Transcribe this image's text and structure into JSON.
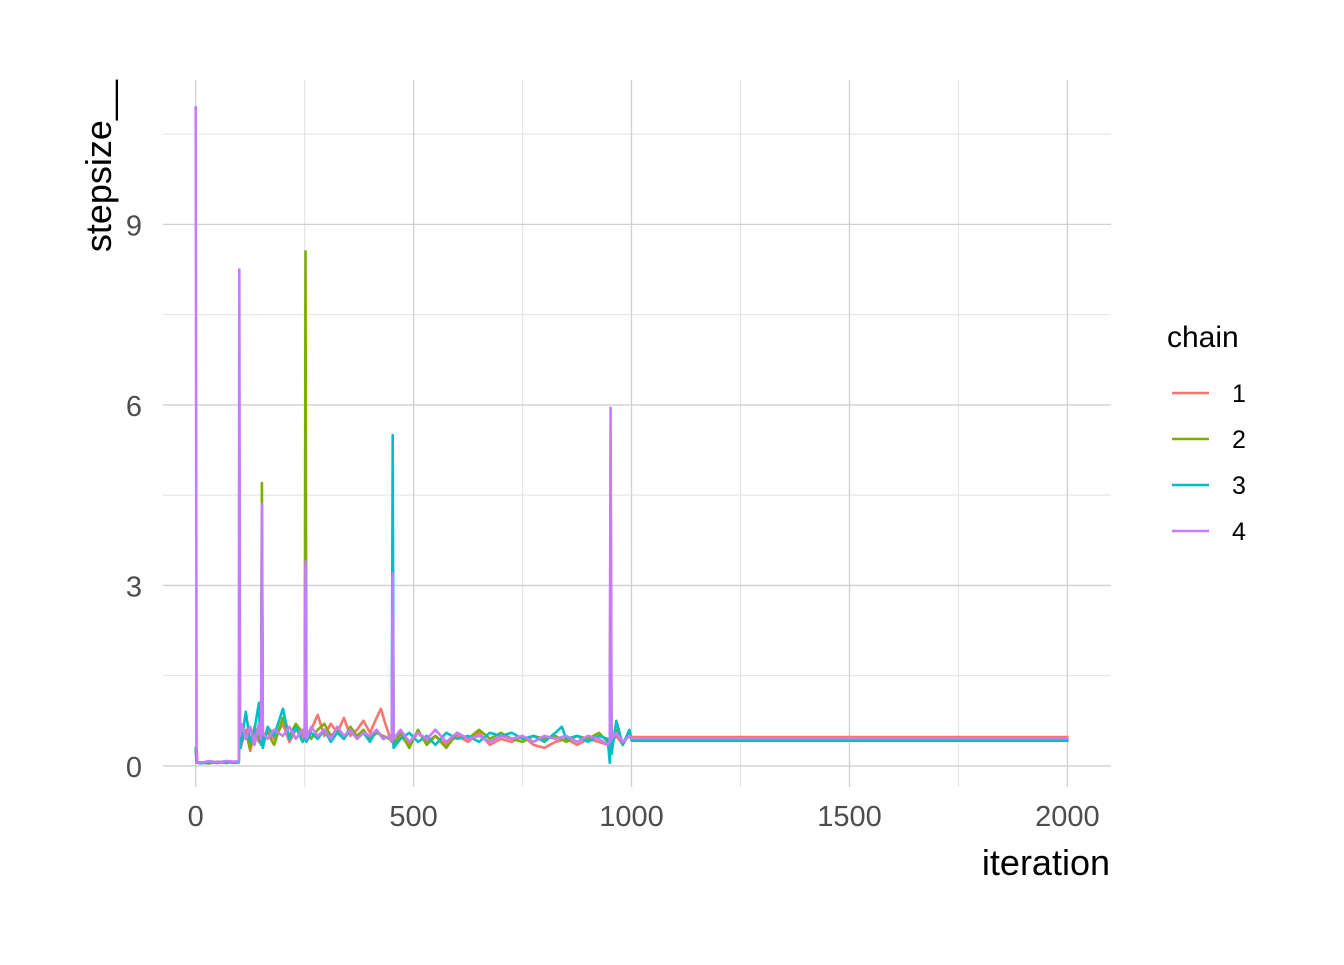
{
  "chart_data": {
    "type": "line",
    "title": "",
    "xlabel": "iteration",
    "ylabel": "stepsize__",
    "xlim": [
      -75,
      2100
    ],
    "ylim": [
      -0.35,
      11.4
    ],
    "x_ticks": [
      0,
      500,
      1000,
      1500,
      2000
    ],
    "x_tick_labels": [
      "0",
      "500",
      "1000",
      "1500",
      "2000"
    ],
    "y_ticks": [
      0,
      3,
      6,
      9
    ],
    "y_tick_labels": [
      "0",
      "3",
      "6",
      "9"
    ],
    "grid": true,
    "legend": {
      "title": "chain",
      "position": "right"
    },
    "series": [
      {
        "name": "1",
        "color": "#F8766D",
        "points": [
          [
            0,
            0.3
          ],
          [
            2,
            0.06
          ],
          [
            10,
            0.05
          ],
          [
            30,
            0.07
          ],
          [
            50,
            0.05
          ],
          [
            70,
            0.08
          ],
          [
            90,
            0.06
          ],
          [
            99,
            0.07
          ],
          [
            100,
            1.0
          ],
          [
            103,
            0.3
          ],
          [
            115,
            0.6
          ],
          [
            125,
            0.25
          ],
          [
            135,
            0.55
          ],
          [
            145,
            0.4
          ],
          [
            150,
            0.5
          ],
          [
            152,
            3.9
          ],
          [
            154,
            0.45
          ],
          [
            165,
            0.6
          ],
          [
            180,
            0.45
          ],
          [
            200,
            0.7
          ],
          [
            215,
            0.4
          ],
          [
            230,
            0.6
          ],
          [
            245,
            0.5
          ],
          [
            250,
            0.45
          ],
          [
            252,
            3.2
          ],
          [
            254,
            0.5
          ],
          [
            265,
            0.6
          ],
          [
            280,
            0.85
          ],
          [
            295,
            0.5
          ],
          [
            310,
            0.7
          ],
          [
            325,
            0.55
          ],
          [
            340,
            0.8
          ],
          [
            355,
            0.5
          ],
          [
            370,
            0.6
          ],
          [
            385,
            0.75
          ],
          [
            400,
            0.55
          ],
          [
            415,
            0.8
          ],
          [
            425,
            0.95
          ],
          [
            435,
            0.7
          ],
          [
            445,
            0.5
          ],
          [
            450,
            0.4
          ],
          [
            452,
            3.6
          ],
          [
            454,
            0.35
          ],
          [
            470,
            0.5
          ],
          [
            490,
            0.35
          ],
          [
            510,
            0.55
          ],
          [
            530,
            0.4
          ],
          [
            550,
            0.5
          ],
          [
            575,
            0.35
          ],
          [
            600,
            0.5
          ],
          [
            625,
            0.4
          ],
          [
            650,
            0.55
          ],
          [
            675,
            0.35
          ],
          [
            700,
            0.45
          ],
          [
            725,
            0.4
          ],
          [
            750,
            0.5
          ],
          [
            775,
            0.35
          ],
          [
            800,
            0.3
          ],
          [
            825,
            0.4
          ],
          [
            850,
            0.45
          ],
          [
            875,
            0.35
          ],
          [
            900,
            0.45
          ],
          [
            925,
            0.4
          ],
          [
            945,
            0.35
          ],
          [
            950,
            0.4
          ],
          [
            952,
            5.3
          ],
          [
            954,
            0.4
          ],
          [
            965,
            0.5
          ],
          [
            980,
            0.35
          ],
          [
            995,
            0.55
          ],
          [
            1000,
            0.48
          ],
          [
            1005,
            0.48
          ],
          [
            1500,
            0.48
          ],
          [
            2000,
            0.48
          ]
        ]
      },
      {
        "name": "2",
        "color": "#7CAE00",
        "points": [
          [
            0,
            0.3
          ],
          [
            2,
            0.05
          ],
          [
            10,
            0.06
          ],
          [
            30,
            0.04
          ],
          [
            50,
            0.07
          ],
          [
            70,
            0.05
          ],
          [
            90,
            0.07
          ],
          [
            99,
            0.06
          ],
          [
            100,
            0.7
          ],
          [
            103,
            0.4
          ],
          [
            115,
            0.55
          ],
          [
            125,
            0.3
          ],
          [
            135,
            0.65
          ],
          [
            145,
            0.45
          ],
          [
            150,
            0.4
          ],
          [
            152,
            4.7
          ],
          [
            154,
            0.5
          ],
          [
            165,
            0.55
          ],
          [
            180,
            0.35
          ],
          [
            200,
            0.8
          ],
          [
            215,
            0.5
          ],
          [
            230,
            0.7
          ],
          [
            245,
            0.55
          ],
          [
            250,
            0.5
          ],
          [
            252,
            8.55
          ],
          [
            254,
            0.6
          ],
          [
            265,
            0.45
          ],
          [
            280,
            0.6
          ],
          [
            295,
            0.7
          ],
          [
            310,
            0.5
          ],
          [
            325,
            0.6
          ],
          [
            340,
            0.45
          ],
          [
            355,
            0.65
          ],
          [
            370,
            0.5
          ],
          [
            385,
            0.6
          ],
          [
            400,
            0.45
          ],
          [
            415,
            0.55
          ],
          [
            430,
            0.5
          ],
          [
            445,
            0.45
          ],
          [
            450,
            0.4
          ],
          [
            452,
            3.3
          ],
          [
            454,
            0.35
          ],
          [
            470,
            0.55
          ],
          [
            490,
            0.3
          ],
          [
            510,
            0.6
          ],
          [
            530,
            0.35
          ],
          [
            550,
            0.5
          ],
          [
            575,
            0.3
          ],
          [
            600,
            0.55
          ],
          [
            625,
            0.45
          ],
          [
            650,
            0.6
          ],
          [
            675,
            0.45
          ],
          [
            700,
            0.55
          ],
          [
            725,
            0.45
          ],
          [
            750,
            0.4
          ],
          [
            775,
            0.5
          ],
          [
            800,
            0.45
          ],
          [
            825,
            0.5
          ],
          [
            850,
            0.4
          ],
          [
            875,
            0.5
          ],
          [
            900,
            0.45
          ],
          [
            925,
            0.55
          ],
          [
            945,
            0.4
          ],
          [
            950,
            0.4
          ],
          [
            952,
            4.1
          ],
          [
            954,
            0.35
          ],
          [
            965,
            0.6
          ],
          [
            980,
            0.4
          ],
          [
            995,
            0.5
          ],
          [
            1000,
            0.45
          ],
          [
            1005,
            0.45
          ],
          [
            1500,
            0.45
          ],
          [
            2000,
            0.45
          ]
        ]
      },
      {
        "name": "3",
        "color": "#00BFC4",
        "points": [
          [
            0,
            0.3
          ],
          [
            2,
            0.07
          ],
          [
            10,
            0.04
          ],
          [
            30,
            0.06
          ],
          [
            50,
            0.05
          ],
          [
            70,
            0.07
          ],
          [
            90,
            0.05
          ],
          [
            99,
            0.06
          ],
          [
            100,
            0.5
          ],
          [
            103,
            0.3
          ],
          [
            115,
            0.9
          ],
          [
            125,
            0.4
          ],
          [
            135,
            0.6
          ],
          [
            145,
            1.05
          ],
          [
            148,
            0.4
          ],
          [
            150,
            0.35
          ],
          [
            152,
            3.8
          ],
          [
            154,
            0.3
          ],
          [
            165,
            0.65
          ],
          [
            180,
            0.5
          ],
          [
            200,
            0.95
          ],
          [
            215,
            0.45
          ],
          [
            230,
            0.65
          ],
          [
            245,
            0.4
          ],
          [
            250,
            0.45
          ],
          [
            252,
            2.8
          ],
          [
            254,
            0.4
          ],
          [
            265,
            0.55
          ],
          [
            280,
            0.45
          ],
          [
            295,
            0.6
          ],
          [
            310,
            0.4
          ],
          [
            325,
            0.55
          ],
          [
            340,
            0.45
          ],
          [
            355,
            0.6
          ],
          [
            370,
            0.45
          ],
          [
            385,
            0.55
          ],
          [
            400,
            0.4
          ],
          [
            415,
            0.6
          ],
          [
            430,
            0.45
          ],
          [
            445,
            0.5
          ],
          [
            450,
            0.45
          ],
          [
            452,
            5.5
          ],
          [
            454,
            0.3
          ],
          [
            470,
            0.45
          ],
          [
            490,
            0.55
          ],
          [
            510,
            0.4
          ],
          [
            530,
            0.5
          ],
          [
            550,
            0.35
          ],
          [
            575,
            0.55
          ],
          [
            600,
            0.45
          ],
          [
            625,
            0.5
          ],
          [
            650,
            0.4
          ],
          [
            675,
            0.55
          ],
          [
            700,
            0.5
          ],
          [
            725,
            0.55
          ],
          [
            750,
            0.45
          ],
          [
            775,
            0.5
          ],
          [
            800,
            0.4
          ],
          [
            825,
            0.55
          ],
          [
            840,
            0.65
          ],
          [
            850,
            0.45
          ],
          [
            875,
            0.5
          ],
          [
            900,
            0.4
          ],
          [
            925,
            0.5
          ],
          [
            945,
            0.45
          ],
          [
            950,
            0.05
          ],
          [
            952,
            3.4
          ],
          [
            954,
            0.2
          ],
          [
            965,
            0.75
          ],
          [
            980,
            0.35
          ],
          [
            995,
            0.6
          ],
          [
            1000,
            0.42
          ],
          [
            1005,
            0.42
          ],
          [
            1500,
            0.42
          ],
          [
            2000,
            0.42
          ]
        ]
      },
      {
        "name": "4",
        "color": "#C77CFF",
        "points": [
          [
            0,
            10.95
          ],
          [
            2,
            0.3
          ],
          [
            4,
            0.05
          ],
          [
            10,
            0.05
          ],
          [
            30,
            0.08
          ],
          [
            50,
            0.06
          ],
          [
            70,
            0.08
          ],
          [
            90,
            0.07
          ],
          [
            99,
            0.08
          ],
          [
            100,
            8.25
          ],
          [
            102,
            0.5
          ],
          [
            105,
            0.7
          ],
          [
            115,
            0.45
          ],
          [
            125,
            0.65
          ],
          [
            135,
            0.35
          ],
          [
            145,
            0.7
          ],
          [
            150,
            0.45
          ],
          [
            152,
            4.35
          ],
          [
            154,
            0.55
          ],
          [
            165,
            0.45
          ],
          [
            180,
            0.6
          ],
          [
            200,
            0.5
          ],
          [
            215,
            0.65
          ],
          [
            230,
            0.45
          ],
          [
            245,
            0.6
          ],
          [
            250,
            0.5
          ],
          [
            252,
            3.4
          ],
          [
            254,
            0.45
          ],
          [
            265,
            0.65
          ],
          [
            280,
            0.5
          ],
          [
            295,
            0.6
          ],
          [
            310,
            0.45
          ],
          [
            325,
            0.65
          ],
          [
            340,
            0.5
          ],
          [
            355,
            0.6
          ],
          [
            370,
            0.45
          ],
          [
            385,
            0.55
          ],
          [
            400,
            0.5
          ],
          [
            415,
            0.6
          ],
          [
            430,
            0.45
          ],
          [
            445,
            0.5
          ],
          [
            450,
            0.4
          ],
          [
            452,
            3.2
          ],
          [
            454,
            0.45
          ],
          [
            470,
            0.6
          ],
          [
            490,
            0.4
          ],
          [
            510,
            0.55
          ],
          [
            530,
            0.45
          ],
          [
            550,
            0.6
          ],
          [
            575,
            0.4
          ],
          [
            600,
            0.55
          ],
          [
            625,
            0.45
          ],
          [
            650,
            0.5
          ],
          [
            675,
            0.4
          ],
          [
            700,
            0.5
          ],
          [
            725,
            0.45
          ],
          [
            750,
            0.5
          ],
          [
            775,
            0.4
          ],
          [
            800,
            0.5
          ],
          [
            825,
            0.45
          ],
          [
            850,
            0.5
          ],
          [
            875,
            0.4
          ],
          [
            900,
            0.5
          ],
          [
            925,
            0.45
          ],
          [
            945,
            0.35
          ],
          [
            950,
            0.4
          ],
          [
            952,
            5.95
          ],
          [
            954,
            0.45
          ],
          [
            965,
            0.55
          ],
          [
            980,
            0.4
          ],
          [
            995,
            0.5
          ],
          [
            1000,
            0.46
          ],
          [
            1005,
            0.46
          ],
          [
            1500,
            0.46
          ],
          [
            2000,
            0.46
          ]
        ]
      }
    ]
  }
}
